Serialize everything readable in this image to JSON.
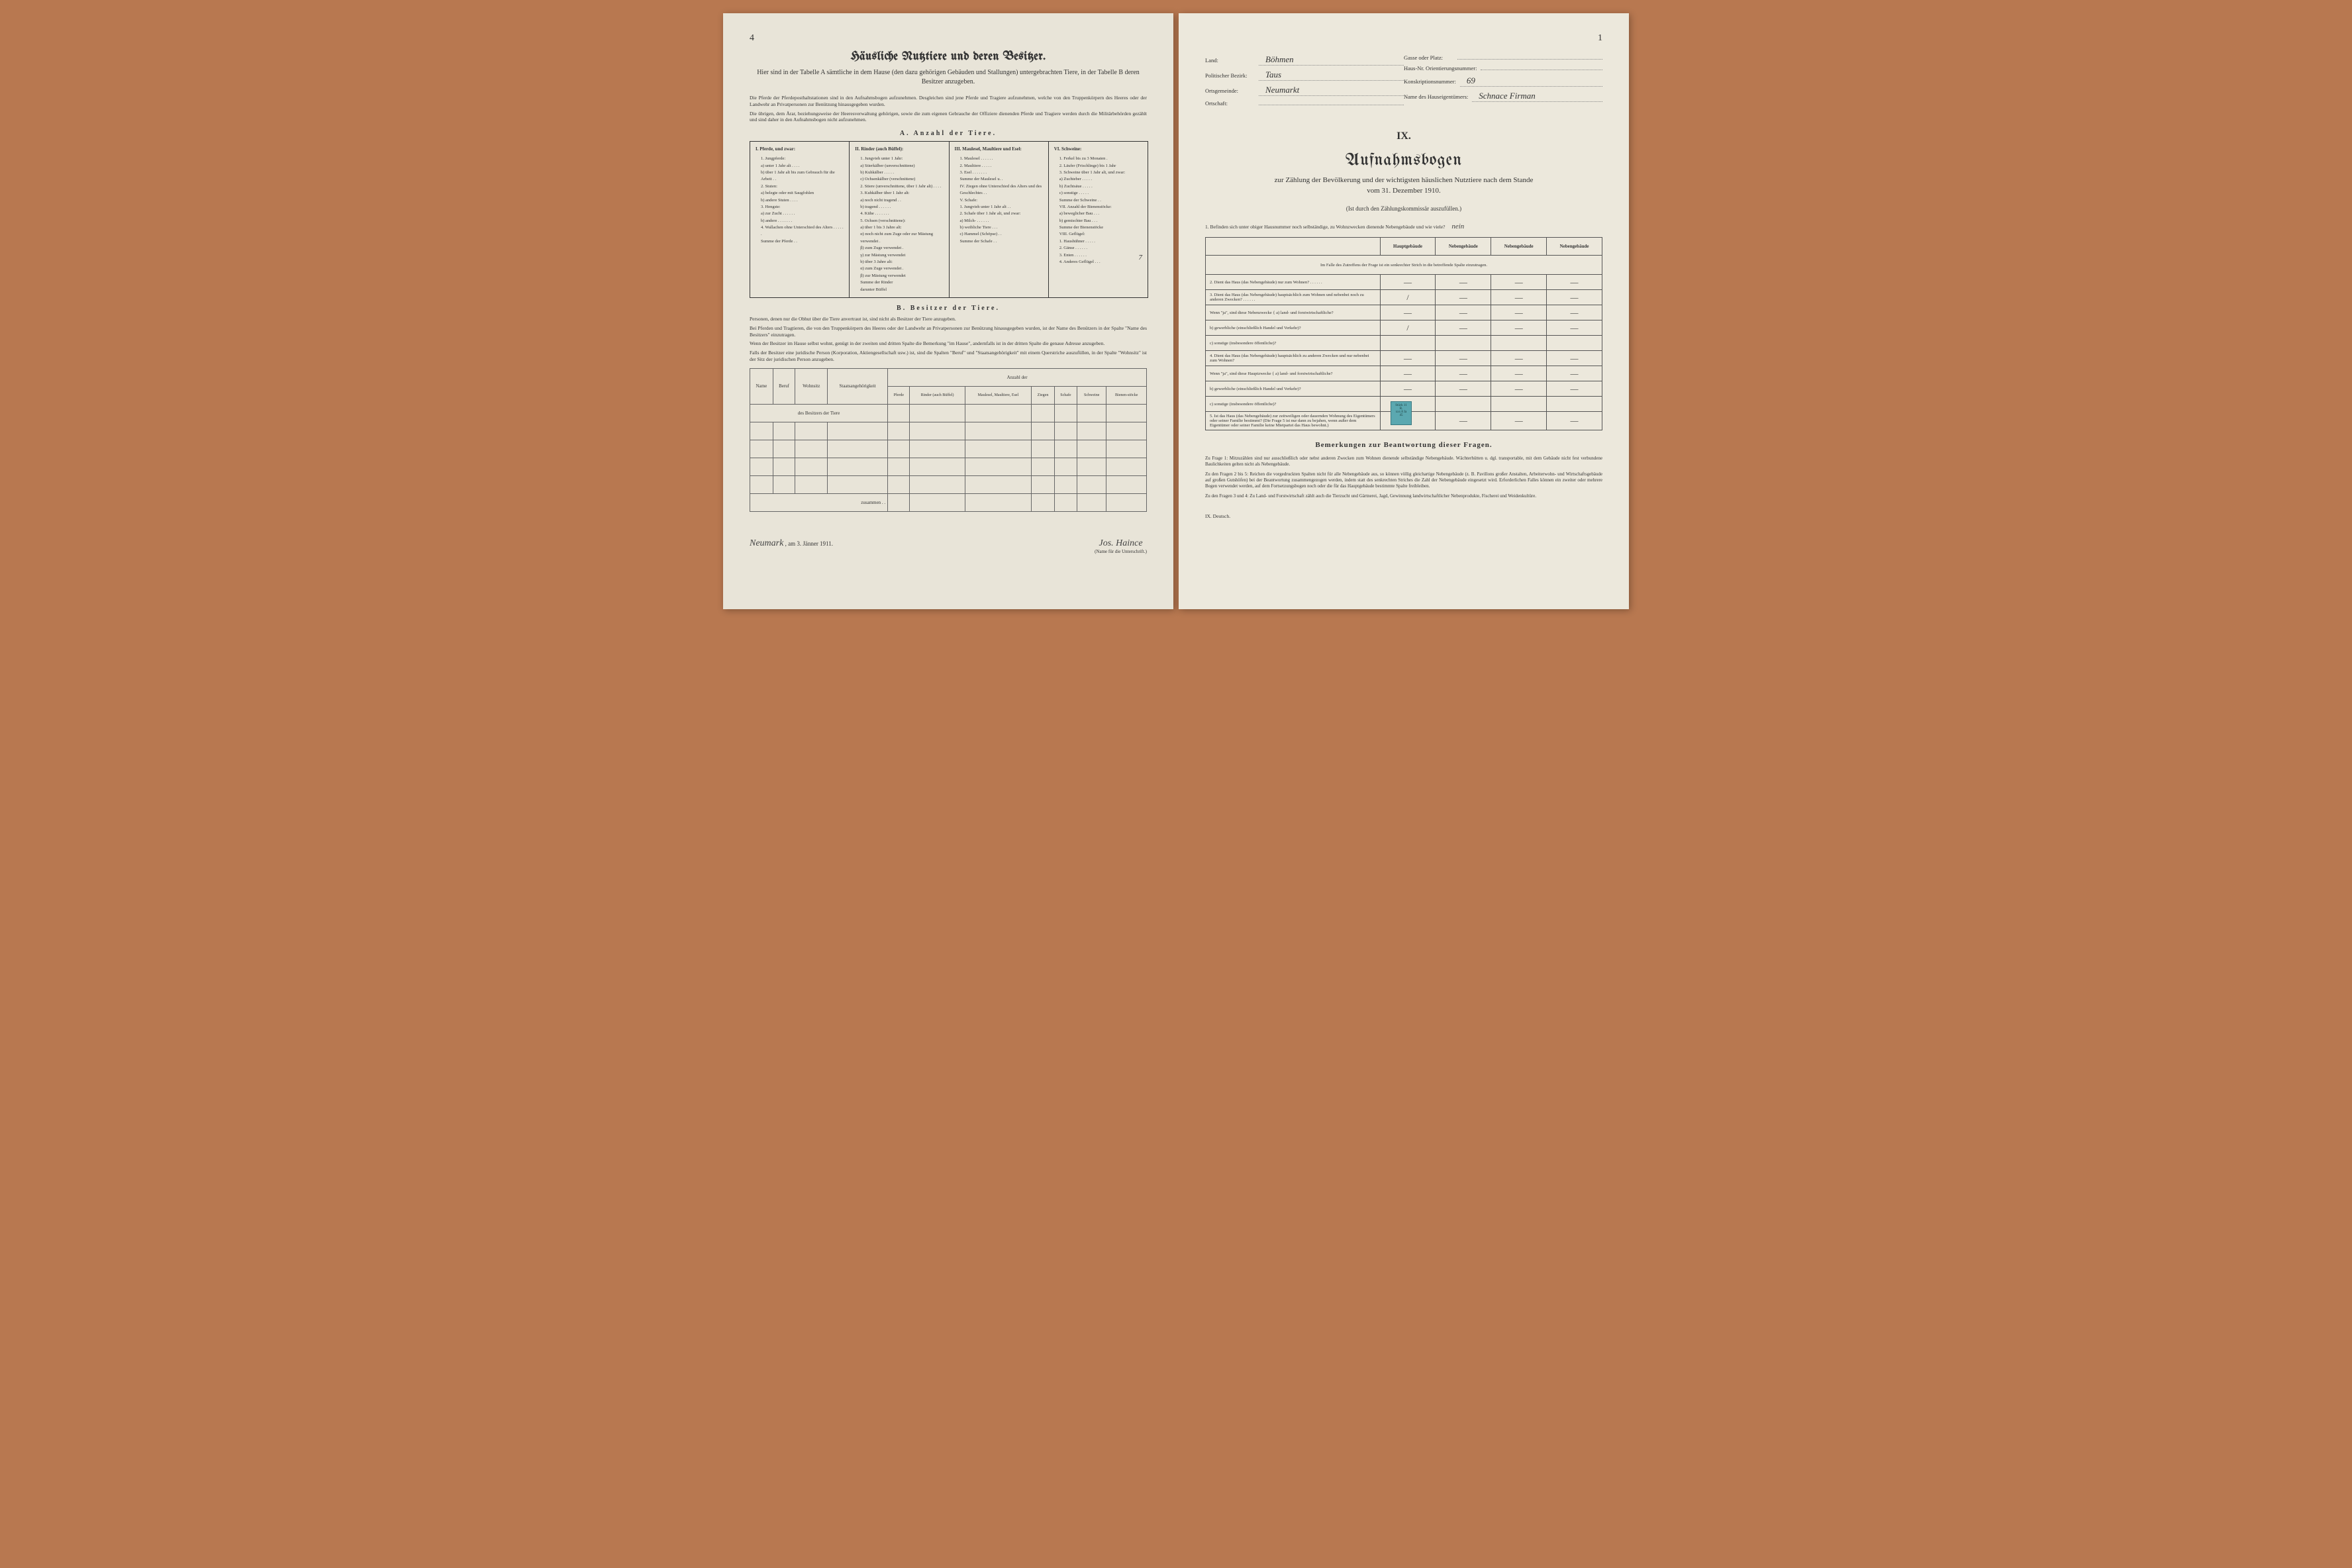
{
  "left": {
    "page_num": "4",
    "title": "Häusliche Nutztiere und deren Besitzer.",
    "subtitle": "Hier sind in der Tabelle A sämtliche in dem Hause (den dazu gehörigen Gebäuden und Stallungen) untergebrachten Tiere, in der Tabelle B deren Besitzer anzugeben.",
    "fine1": "Die Pferde der Pferdeposthaltstationen sind in den Aufnahmsbogen aufzunehmen. Desgleichen sind jene Pferde und Tragiere aufzunehmen, welche von den Truppenkörpern des Heeres oder der Landwehr an Privatpersonen zur Benützung hinausgegeben wurden.",
    "fine2": "Die übrigen, dem Ärar, beziehungsweise der Heeresverwaltung gehörigen, sowie die zum eigenen Gebrauche der Offiziere dienenden Pferde und Tragiere werden durch die Militärbehörden gezählt und sind daher in den Aufnahmsbogen nicht aufzunehmen.",
    "section_a": "A. Anzahl der Tiere.",
    "col1_head": "I. Pferde, und zwar:",
    "col1_items": [
      "1. Jungpferde:",
      "a) unter 1 Jahr alt . . . .",
      "b) über 1 Jahr alt bis zum Gebrauch für die Arbeit . .",
      "2. Stuten:",
      "a) belegte oder mit Saugfohlen",
      "b) andere Stuten . . . .",
      "3. Hengste:",
      "a) zur Zucht . . . . . .",
      "b) andere . . . . . . .",
      "4. Wallachen ohne Unterschied des Alters . . . . . .",
      "Summe der Pferde . ."
    ],
    "col2_head": "II. Rinder (auch Büffel):",
    "col2_items": [
      "1. Jungvieh unter 1 Jahr:",
      "a) Stierkälber (unverschnittene)",
      "b) Kuhkälber . . . . .",
      "c) Ochsenkälber (verschnittene)",
      "2. Stiere (unverschnittene, über 1 Jahr alt) . . . .",
      "3. Kuhkälber über 1 Jahr alt:",
      "a) noch nicht tragend . .",
      "b) tragend . . . . . .",
      "4. Kühe . . . . . . .",
      "5. Ochsen (verschnittene):",
      "a) über 1 bis 3 Jahre alt:",
      "α) noch nicht zum Zuge oder zur Mästung verwendet .",
      "β) zum Zuge verwendet .",
      "γ) zur Mästung verwendet",
      "b) über 3 Jahre alt:",
      "α) zum Zuge verwendet .",
      "β) zur Mästung verwendet",
      "Summe der Rinder",
      "darunter Büffel"
    ],
    "col3_head": "III. Maulesel, Maultiere und Esel:",
    "col3_items": [
      "1. Maulesel . . . . . .",
      "2. Maultiere . . . . .",
      "3. Esel . . . . . . .",
      "Summe der Maulesel u. .",
      "",
      "IV. Ziegen ohne Unterschied des Alters und des Geschlechtes . .",
      "",
      "V. Schafe:",
      "1. Jungvieh unter 1 Jahr alt . .",
      "2. Schafe über 1 Jahr alt, und zwar:",
      "a) Milch- . . . . . .",
      "b) weibliche Tiere . . .",
      "c) Hammel (Schöpse) . .",
      "Summe der Schafe . ."
    ],
    "col4_head": "VI. Schweine:",
    "col4_items": [
      "1. Ferkel bis zu 3 Monaten .",
      "2. Läufer (Frischlinge) bis 1 Jahr",
      "3. Schweine über 1 Jahr alt, und zwar:",
      "a) Zuchteber . . . . .",
      "b) Zuchtsäue . . . . .",
      "c) sonstige . . . . .",
      "Summe der Schweine . .",
      "",
      "VII. Anzahl der Bienenstöcke:",
      "a) beweglicher Bau . . .",
      "b) gemischter Bau . . .",
      "Summe der Bienenstöcke",
      "",
      "VIII. Geflügel:",
      "1. Haushühner . . . . .",
      "2. Gänse . . . . . .",
      "3. Enten . . . . . .",
      "4. Anderes Geflügel . . ."
    ],
    "hand_7": "7",
    "section_b": "B. Besitzer der Tiere.",
    "fine_b1": "Personen, denen nur die Obhut über die Tiere anvertraut ist, sind nicht als Besitzer der Tiere anzugeben.",
    "fine_b2": "Bei Pferden und Tragtieren, die von den Truppenkörpern des Heeres oder der Landwehr an Privatpersonen zur Benützung hinausgegeben wurden, ist der Name des Benützers in der Spalte \"Name des Besitzers\" einzutragen.",
    "fine_b3": "Wenn der Besitzer im Hause selbst wohnt, genügt in der zweiten und dritten Spalte die Bemerkung \"im Hause\", andernfalls ist in der dritten Spalte die genaue Adresse anzugeben.",
    "fine_b4": "Falls der Besitzer eine juridische Person (Korporation, Aktiengesellschaft usw.) ist, sind die Spalten \"Beruf\" und \"Staatsangehörigkeit\" mit einem Querstriche auszufüllen, in der Spalte \"Wohnsitz\" ist der Sitz der juridischen Person anzugeben.",
    "tb_headers": [
      "Name",
      "Beruf",
      "Wohnsitz",
      "Staatsangehörigkeit"
    ],
    "tb_count_header": "Anzahl der",
    "tb_sub": "des Besitzers der Tiere",
    "tb_cols": [
      "Pferde",
      "Rinder (auch Büffel)",
      "Maulesel, Maultiere, Esel",
      "Ziegen",
      "Schafe",
      "Schweine",
      "Bienen-stöcke"
    ],
    "tb_sum": "zusammen . .",
    "sig_place": "Neumark",
    "sig_date": ", am 3. Jänner 1911.",
    "sig_name": "Jos. Haince",
    "sig_caption": "(Name für die Unterschrift.)"
  },
  "right": {
    "page_num": "1",
    "fields_left": [
      {
        "label": "Land:",
        "value": "Böhmen"
      },
      {
        "label": "Politischer Bezirk:",
        "value": "Taus"
      },
      {
        "label": "Ortsgemeinde:",
        "value": "Neumarkt"
      },
      {
        "label": "Ortschaft:",
        "value": ""
      }
    ],
    "fields_right": [
      {
        "label": "Gasse oder Platz:",
        "value": ""
      },
      {
        "label": "Haus-Nr.",
        "label2": "Orientierungsnummer:",
        "value": ""
      },
      {
        "label": "",
        "label2": "Konskriptionsnummer:",
        "value": "69"
      },
      {
        "label": "Name des Hauseigentümers:",
        "value": "Schnace Firman"
      }
    ],
    "roman": "IX.",
    "main_title": "Aufnahmsbogen",
    "main_subtitle": "zur Zählung der Bevölkerung und der wichtigsten häuslichen Nutztiere nach dem Stande",
    "main_date": "vom 31. Dezember 1910.",
    "instruction": "(Ist durch den Zählungskommissär auszufüllen.)",
    "q1": "1. Befinden sich unter obiger Hausnummer noch selbständige, zu Wohnzwecken dienende Nebengebäude und wie viele?",
    "q1_ans": "nein",
    "table_headers": [
      "Hauptgebäude",
      "Nebengebäude",
      "Nebengebäude",
      "Nebengebäude"
    ],
    "table_note": "Im Falle des Zutreffens der Frage ist ein senkrechter Strich in die betreffende Spalte einzutragen.",
    "rows": [
      {
        "label": "2. Dient das Haus (das Nebengebäude) nur zum Wohnen? . . . . . .",
        "cells": [
          "—",
          "—",
          "—",
          "—"
        ]
      },
      {
        "label": "3. Dient das Haus (das Nebengebäude) hauptsächlich zum Wohnen und nebenbei noch zu anderen Zwecken? . . . . . .",
        "cells": [
          "/",
          "—",
          "—",
          "—"
        ]
      },
      {
        "label": "Wenn \"ja\", sind diese Nebenzwecke { a) land- und forstwirtschaftliche?",
        "cells": [
          "—",
          "—",
          "—",
          "—"
        ]
      },
      {
        "label": "b) gewerbliche (einschließlich Handel und Verkehr)?",
        "cells": [
          "/",
          "—",
          "—",
          "—"
        ]
      },
      {
        "label": "c) sonstige (insbesondere öffentliche)?",
        "cells": [
          "",
          "",
          "",
          ""
        ]
      },
      {
        "label": "4. Dient das Haus (das Nebengebäude) hauptsächlich zu anderen Zwecken und nur nebenbei zum Wohnen?",
        "cells": [
          "—",
          "—",
          "—",
          "—"
        ]
      },
      {
        "label": "Wenn \"ja\", sind diese Hauptzwecke { a) land- und forstwirtschaftliche?",
        "cells": [
          "—",
          "—",
          "—",
          "—"
        ]
      },
      {
        "label": "b) gewerbliche (einschließlich Handel und Verkehr)?",
        "cells": [
          "—",
          "—",
          "—",
          "—"
        ]
      },
      {
        "label": "c) sonstige (insbesondere öffentliche)?",
        "cells": [
          "",
          "",
          "",
          ""
        ]
      },
      {
        "label": "5. Ist das Haus (das Nebengebäude) zur zeitweiligen oder dauernden Wohnung des Eigentümers oder seiner Familie bestimmt? (Die Frage 5 ist nur dann zu bejahen, wenn außer dem Eigentümer oder seiner Familie keine Mietpartei das Haus bewohnt.)",
        "cells": [
          "—",
          "—",
          "—",
          "—"
        ]
      }
    ],
    "stamp": {
      "line1": "Stück 11",
      "line2": "R.",
      "line3": "xxx 8 Ja",
      "line4": "45"
    },
    "remarks_title": "Bemerkungen zur Beantwortung dieser Fragen.",
    "remarks": [
      "Zu Frage 1: Mitzuzählen sind nur ausschließlich oder nebst anderen Zwecken zum Wohnen dienende selbständige Nebengebäude. Wächterhütten u. dgl. transportable, mit dem Gebäude nicht fest verbundene Baulichkeiten gelten nicht als Nebengebäude.",
      "Zu den Fragen 2 bis 5: Reichen die vorgedruckten Spalten nicht für alle Nebengebäude aus, so können völlig gleichartige Nebengebäude (z. B. Pavillons großer Anstalten, Arbeiterwohn- und Wirtschaftsgebäude auf großen Gutshöfen) bei der Beantwortung zusammengezogen werden, indem statt des senkrechten Striches die Zahl der Nebengebäude eingesetzt wird. Erforderlichen Falles können ein zweiter oder mehrere Bogen verwendet werden, auf dem Fortsetzungsbogen noch oder die für das Hauptgebäude bestimmte Spalte freibleiben.",
      "Zu den Fragen 3 und 4: Zu Land- und Forstwirtschaft zählt auch die Tierzucht und Gärtnerei, Jagd, Gewinnung landwirtschaftlicher Nebenprodukte, Fischerei und Weidenkultüre."
    ],
    "bottom": "IX. Deutsch."
  }
}
